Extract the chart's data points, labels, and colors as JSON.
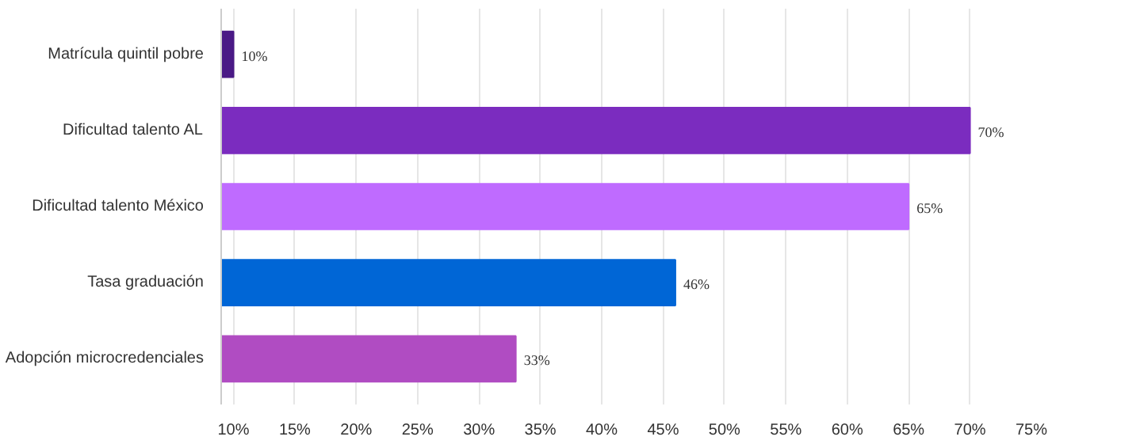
{
  "chart_data": {
    "type": "bar",
    "orientation": "horizontal",
    "categories": [
      "Matrícula quintil pobre",
      "Dificultad talento AL",
      "Dificultad talento México",
      "Tasa graduación",
      "Adopción microcredenciales"
    ],
    "values": [
      10,
      70,
      65,
      46,
      33
    ],
    "colors": [
      "#4a1a86",
      "#7b2cbf",
      "#bf6bff",
      "#0066d6",
      "#b04cc2"
    ],
    "value_labels": [
      "10%",
      "70%",
      "65%",
      "46%",
      "33%"
    ],
    "xlim": [
      9,
      75
    ],
    "xticks": [
      {
        "value": 10,
        "label": "10%"
      },
      {
        "value": 15,
        "label": "15%"
      },
      {
        "value": 20,
        "label": "20%"
      },
      {
        "value": 25,
        "label": "25%"
      },
      {
        "value": 30,
        "label": "30%"
      },
      {
        "value": 35,
        "label": "35%"
      },
      {
        "value": 40,
        "label": "40%"
      },
      {
        "value": 45,
        "label": "45%"
      },
      {
        "value": 50,
        "label": "50%"
      },
      {
        "value": 55,
        "label": "55%"
      },
      {
        "value": 60,
        "label": "60%"
      },
      {
        "value": 65,
        "label": "65%"
      },
      {
        "value": 70,
        "label": "70%"
      },
      {
        "value": 75,
        "label": "75%"
      }
    ],
    "grid": "x"
  }
}
